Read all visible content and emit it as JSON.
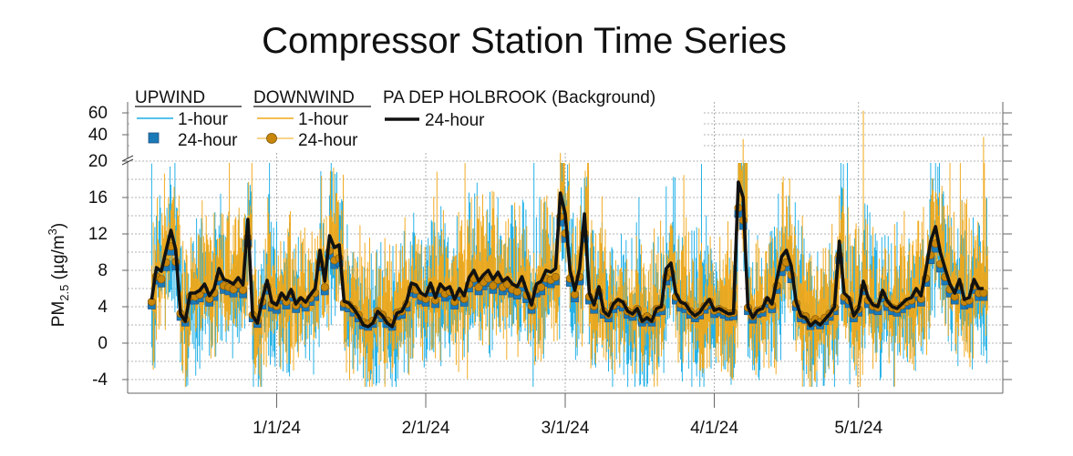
{
  "chart_data": {
    "type": "line",
    "title": "Compressor Station Time Series",
    "ylabel_main": "PM",
    "ylabel_sub": "2.5",
    "ylabel_unit": "(µg/m",
    "ylabel_unit_sup": "3",
    "ylabel_unit_close": ")",
    "x_range": [
      "2023-12-01",
      "2024-05-31"
    ],
    "x_ticks": [
      {
        "date": "2024-01-01",
        "label": "1/1/24"
      },
      {
        "date": "2024-02-01",
        "label": "2/1/24"
      },
      {
        "date": "2024-03-01",
        "label": "3/1/24"
      },
      {
        "date": "2024-04-01",
        "label": "4/1/24"
      },
      {
        "date": "2024-05-01",
        "label": "5/1/24"
      }
    ],
    "y_axis_lower": {
      "range": [
        -5,
        20
      ],
      "ticks": [
        -4,
        0,
        4,
        8,
        12,
        16,
        20
      ]
    },
    "y_axis_upper": {
      "range": [
        20,
        70
      ],
      "ticks": [
        40,
        60
      ],
      "scale": "compressed"
    },
    "grid": true,
    "legend": {
      "groups": [
        {
          "header": "UPWIND",
          "items": [
            {
              "label": "1-hour",
              "color": "#1aaee6",
              "marker": "line"
            },
            {
              "label": "24-hour",
              "color": "#1a7ab8",
              "marker": "square"
            }
          ]
        },
        {
          "header": "DOWNWIND",
          "items": [
            {
              "label": "1-hour",
              "color": "#f0a818",
              "marker": "line"
            },
            {
              "label": "24-hour",
              "color": "#c8860a",
              "marker": "circle"
            }
          ]
        },
        {
          "header": "PA DEP HOLBROOK (Background)",
          "items": [
            {
              "label": "24-hour",
              "color": "#111111",
              "marker": "thick-line"
            }
          ]
        }
      ],
      "placement": "top-left"
    },
    "series": [
      {
        "name": "PA DEP HOLBROOK (Background) 24-hour",
        "color": "#111111",
        "start_date": "2023-12-06",
        "values": [
          4.8,
          8.3,
          7.9,
          10.2,
          12.4,
          10.3,
          3.2,
          2.4,
          5.5,
          5.5,
          5.8,
          6.5,
          5.2,
          6.0,
          8.2,
          7.0,
          6.8,
          6.5,
          7.2,
          6.4,
          13.6,
          3.0,
          2.2,
          4.8,
          6.9,
          4.5,
          4.2,
          5.5,
          4.8,
          5.9,
          4.3,
          5.0,
          4.5,
          5.3,
          6.0,
          10.2,
          6.8,
          11.8,
          10.5,
          10.8,
          4.6,
          4.4,
          3.8,
          3.0,
          2.0,
          1.8,
          2.2,
          3.5,
          3.0,
          2.2,
          1.8,
          3.3,
          3.5,
          4.5,
          6.6,
          6.4,
          5.5,
          5.2,
          6.6,
          5.0,
          6.5,
          5.9,
          6.2,
          4.8,
          6.0,
          5.2,
          7.2,
          8.0,
          6.8,
          7.5,
          8.0,
          7.0,
          7.8,
          6.8,
          7.2,
          6.5,
          6.2,
          7.3,
          5.7,
          4.2,
          6.5,
          6.8,
          8.0,
          7.8,
          8.2,
          16.5,
          14.2,
          8.0,
          5.8,
          8.2,
          14.2,
          5.5,
          4.2,
          6.2,
          3.5,
          3.0,
          4.3,
          4.8,
          4.5,
          3.5,
          3.2,
          3.8,
          2.4,
          2.8,
          2.4,
          3.8,
          4.0,
          8.2,
          8.8,
          5.5,
          4.5,
          4.3,
          3.5,
          3.0,
          3.4,
          4.2,
          4.8,
          3.6,
          3.8,
          3.5,
          3.2,
          3.3,
          17.7,
          16.0,
          4.0,
          2.8,
          3.6,
          3.8,
          5.0,
          4.3,
          7.0,
          9.5,
          10.2,
          8.5,
          4.6,
          3.0,
          2.8,
          1.9,
          2.4,
          2.0,
          2.6,
          3.2,
          4.0,
          11.2,
          5.5,
          5.0,
          3.0,
          3.8,
          6.8,
          5.0,
          4.2,
          4.0,
          5.8,
          4.6,
          4.0,
          3.8,
          4.3,
          4.8,
          5.0,
          6.0,
          5.2,
          8.0,
          11.2,
          12.8,
          10.0,
          8.2,
          6.5,
          5.5,
          7.0,
          4.8,
          5.0,
          7.0,
          6.0,
          6.0
        ],
        "marker": "thick-line"
      }
    ]
  }
}
